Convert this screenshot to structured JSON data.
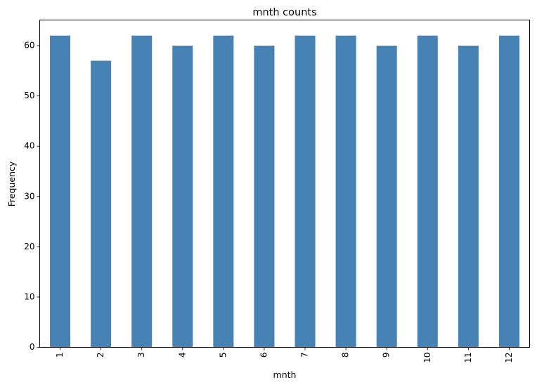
{
  "chart_data": {
    "type": "bar",
    "title": "mnth counts",
    "xlabel": "mnth",
    "ylabel": "Frequency",
    "categories": [
      "1",
      "2",
      "3",
      "4",
      "5",
      "6",
      "7",
      "8",
      "9",
      "10",
      "11",
      "12"
    ],
    "values": [
      62,
      57,
      62,
      60,
      62,
      60,
      62,
      62,
      60,
      62,
      60,
      62
    ],
    "ylim": [
      0,
      65.1
    ],
    "yticks": [
      0,
      10,
      20,
      30,
      40,
      50,
      60
    ],
    "x_tick_rotation": 90,
    "bar_color": "#4682b4",
    "grid": false,
    "legend": "none"
  }
}
